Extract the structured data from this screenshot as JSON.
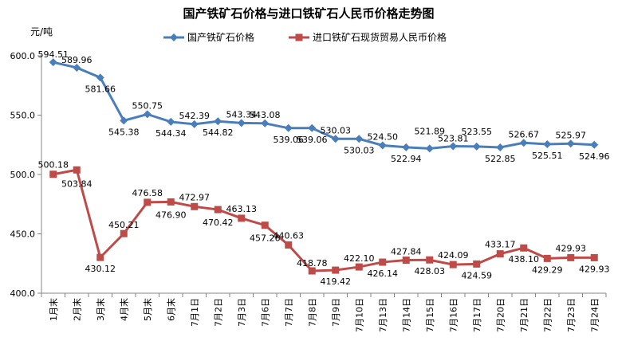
{
  "chart_data": {
    "type": "line",
    "title": "国产铁矿石价格与进口铁矿石人民币价格走势图",
    "ylabel": "元/吨",
    "ylim": [
      400,
      600
    ],
    "yticks": [
      "400.0",
      "450.0",
      "500.0",
      "550.0",
      "600.0"
    ],
    "ytick_values": [
      400,
      450,
      500,
      550,
      600
    ],
    "legend_position": "top",
    "grid": false,
    "categories": [
      "1月末",
      "2月末",
      "3月末",
      "4月末",
      "5月末",
      "6月末",
      "7月1日",
      "7月2日",
      "7月3日",
      "7月6日",
      "7月7日",
      "7月8日",
      "7月9日",
      "7月10日",
      "7月13日",
      "7月14日",
      "7月15日",
      "7月16日",
      "7月17日",
      "7月20日",
      "7月21日",
      "7月22日",
      "7月23日",
      "7月24日"
    ],
    "series": [
      {
        "name": "国产铁矿石价格",
        "color": "#4a7ebb",
        "marker": "diamond",
        "values": [
          594.51,
          589.96,
          581.66,
          545.38,
          550.75,
          544.34,
          542.39,
          544.82,
          543.34,
          543.08,
          539.06,
          539.06,
          530.03,
          530.03,
          524.5,
          522.94,
          521.89,
          523.81,
          523.55,
          522.85,
          526.67,
          525.51,
          525.97,
          524.96
        ],
        "labels": [
          "594.51",
          "589.96",
          "581.66",
          "545.38",
          "550.75",
          "544.34",
          "542.39",
          "544.82",
          "543.34",
          "543.08",
          "539.06",
          "539.06",
          "530.03",
          "530.03",
          "524.50",
          "522.94",
          "521.89",
          "523.81",
          "523.55",
          "522.85",
          "526.67",
          "525.51",
          "525.97",
          "524.96"
        ]
      },
      {
        "name": "进口铁矿石现货贸易人民币价格",
        "color": "#be4b48",
        "marker": "square",
        "values": [
          500.18,
          503.84,
          430.12,
          450.21,
          476.58,
          476.9,
          472.97,
          470.42,
          463.13,
          457.26,
          440.63,
          418.78,
          419.42,
          422.1,
          426.14,
          427.84,
          428.03,
          424.09,
          424.59,
          433.17,
          438.1,
          429.29,
          429.93,
          429.93
        ],
        "labels": [
          "500.18",
          "503.84",
          "430.12",
          "450.21",
          "476.58",
          "476.90",
          "472.97",
          "470.42",
          "463.13",
          "457.26",
          "440.63",
          "418.78",
          "419.42",
          "422.10",
          "426.14",
          "427.84",
          "428.03",
          "424.09",
          "424.59",
          "433.17",
          "438.10",
          "429.29",
          "429.93",
          "429.93"
        ]
      }
    ]
  }
}
